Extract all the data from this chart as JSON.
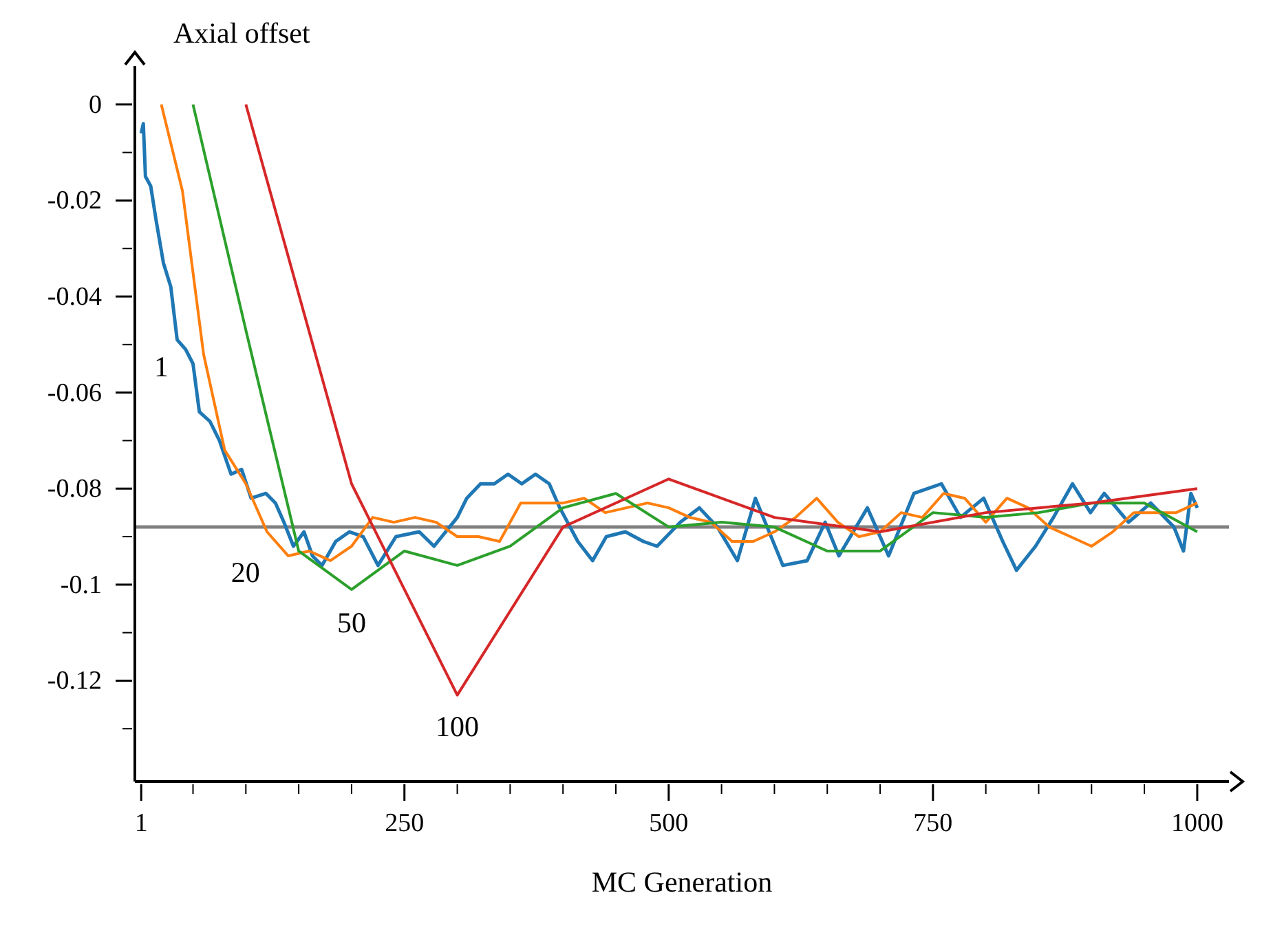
{
  "chart_data": {
    "type": "line",
    "xlabel": "MC Generation",
    "ylabel": "Axial offset",
    "xlim": [
      -5,
      1030
    ],
    "ylim": [
      -0.141,
      0.008
    ],
    "xticks": [
      1,
      {
        "value": 50,
        "label": null
      },
      {
        "value": 100,
        "label": null
      },
      {
        "value": 150,
        "label": null
      },
      {
        "value": 200,
        "label": null
      },
      250,
      {
        "value": 300,
        "label": null
      },
      {
        "value": 350,
        "label": null
      },
      {
        "value": 400,
        "label": null
      },
      {
        "value": 450,
        "label": null
      },
      500,
      {
        "value": 550,
        "label": null
      },
      {
        "value": 600,
        "label": null
      },
      {
        "value": 650,
        "label": null
      },
      {
        "value": 700,
        "label": null
      },
      750,
      {
        "value": 800,
        "label": null
      },
      {
        "value": 850,
        "label": null
      },
      {
        "value": 900,
        "label": null
      },
      {
        "value": 950,
        "label": null
      },
      1000
    ],
    "yticks": [
      0,
      {
        "value": -0.01,
        "label": null
      },
      -0.02,
      {
        "value": -0.03,
        "label": null
      },
      -0.04,
      {
        "value": -0.05,
        "label": null
      },
      -0.06,
      {
        "value": -0.07,
        "label": null
      },
      -0.08,
      {
        "value": -0.09,
        "label": null
      },
      -0.1,
      {
        "value": -0.11,
        "label": null
      },
      -0.12,
      {
        "value": -0.13,
        "label": null
      }
    ],
    "ref_lines": [
      {
        "axis": "y",
        "value": -0.088,
        "color": "#808080"
      }
    ],
    "series": [
      {
        "name": "1",
        "color": "#1f77b4",
        "x": [
          1,
          3,
          5,
          10,
          15,
          22,
          29,
          35,
          43,
          50,
          56,
          66,
          75,
          86,
          96,
          105,
          119,
          128,
          136,
          145,
          155,
          163,
          172,
          185,
          198,
          211,
          225,
          242,
          264,
          278,
          300,
          309,
          322,
          335,
          348,
          361,
          374,
          387,
          397,
          414,
          428,
          441,
          459,
          476,
          489,
          511,
          529,
          546,
          565,
          582,
          608,
          631,
          648,
          661,
          688,
          708,
          732,
          758,
          776,
          798,
          816,
          829,
          847,
          864,
          882,
          899,
          912,
          935,
          956,
          978,
          987,
          994,
          1000
        ],
        "values": [
          -0.006,
          -0.004,
          -0.015,
          -0.017,
          -0.024,
          -0.033,
          -0.038,
          -0.049,
          -0.051,
          -0.054,
          -0.064,
          -0.066,
          -0.07,
          -0.077,
          -0.076,
          -0.082,
          -0.081,
          -0.083,
          -0.087,
          -0.092,
          -0.089,
          -0.094,
          -0.096,
          -0.091,
          -0.089,
          -0.09,
          -0.096,
          -0.09,
          -0.089,
          -0.092,
          -0.086,
          -0.082,
          -0.079,
          -0.079,
          -0.077,
          -0.079,
          -0.077,
          -0.079,
          -0.084,
          -0.091,
          -0.095,
          -0.09,
          -0.089,
          -0.091,
          -0.092,
          -0.087,
          -0.084,
          -0.088,
          -0.095,
          -0.082,
          -0.096,
          -0.095,
          -0.087,
          -0.094,
          -0.084,
          -0.094,
          -0.081,
          -0.079,
          -0.086,
          -0.082,
          -0.091,
          -0.097,
          -0.092,
          -0.086,
          -0.079,
          -0.085,
          -0.081,
          -0.087,
          -0.083,
          -0.088,
          -0.093,
          -0.081,
          -0.084
        ]
      },
      {
        "name": "20",
        "color": "#ff7f0e",
        "x": [
          20,
          40,
          60,
          80,
          100,
          120,
          140,
          160,
          180,
          200,
          220,
          240,
          260,
          280,
          300,
          320,
          340,
          360,
          380,
          400,
          420,
          440,
          460,
          480,
          500,
          520,
          540,
          560,
          580,
          600,
          620,
          640,
          660,
          680,
          700,
          720,
          740,
          760,
          780,
          800,
          820,
          840,
          860,
          880,
          900,
          920,
          940,
          960,
          980,
          1000
        ],
        "values": [
          0,
          -0.018,
          -0.052,
          -0.072,
          -0.079,
          -0.089,
          -0.094,
          -0.093,
          -0.095,
          -0.092,
          -0.086,
          -0.087,
          -0.086,
          -0.087,
          -0.09,
          -0.09,
          -0.091,
          -0.083,
          -0.083,
          -0.083,
          -0.082,
          -0.085,
          -0.084,
          -0.083,
          -0.084,
          -0.086,
          -0.087,
          -0.091,
          -0.091,
          -0.089,
          -0.086,
          -0.082,
          -0.087,
          -0.09,
          -0.089,
          -0.085,
          -0.086,
          -0.081,
          -0.082,
          -0.087,
          -0.082,
          -0.084,
          -0.088,
          -0.09,
          -0.092,
          -0.089,
          -0.085,
          -0.085,
          -0.085,
          -0.083
        ]
      },
      {
        "name": "50",
        "color": "#2ca02c",
        "x": [
          50,
          100,
          150,
          200,
          250,
          300,
          350,
          400,
          450,
          500,
          550,
          600,
          650,
          700,
          750,
          800,
          850,
          900,
          950,
          1000
        ],
        "values": [
          0,
          -0.047,
          -0.093,
          -0.101,
          -0.093,
          -0.096,
          -0.092,
          -0.084,
          -0.081,
          -0.088,
          -0.087,
          -0.088,
          -0.093,
          -0.093,
          -0.085,
          -0.086,
          -0.085,
          -0.083,
          -0.083,
          -0.089
        ]
      },
      {
        "name": "100",
        "color": "#d62728",
        "x": [
          100,
          200,
          300,
          400,
          500,
          600,
          700,
          800,
          900,
          1000
        ],
        "values": [
          0,
          -0.079,
          -0.123,
          -0.088,
          -0.078,
          -0.086,
          -0.089,
          -0.085,
          -0.083,
          -0.08
        ]
      }
    ]
  }
}
